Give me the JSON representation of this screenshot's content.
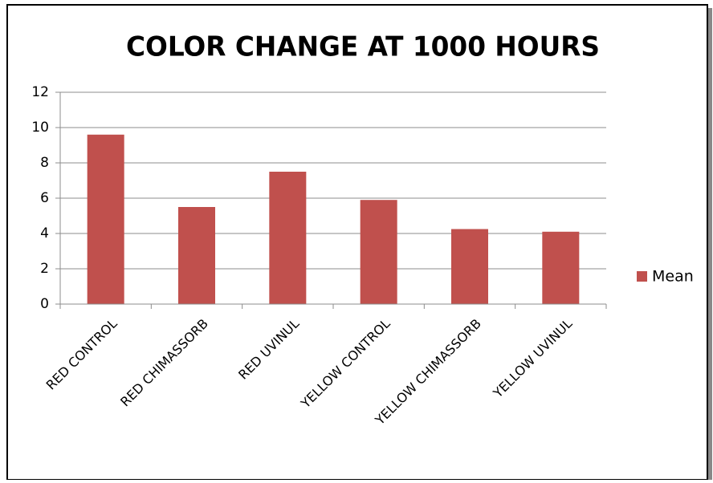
{
  "chart_data": {
    "type": "bar",
    "title": "COLOR CHANGE AT 1000 HOURS",
    "categories": [
      "RED CONTROL",
      "RED CHIMASSORB",
      "RED UVINUL",
      "YELLOW CONTROL",
      "YELLOW CHIMASSORB",
      "YELLOW UVINUL"
    ],
    "series": [
      {
        "name": "Mean",
        "color": "#c0504d",
        "values": [
          9.6,
          5.5,
          7.5,
          5.9,
          4.25,
          4.1
        ]
      }
    ],
    "ylim": [
      0,
      12
    ],
    "yticks": [
      0,
      2,
      4,
      6,
      8,
      10,
      12
    ],
    "grid": true,
    "legend": "right"
  }
}
